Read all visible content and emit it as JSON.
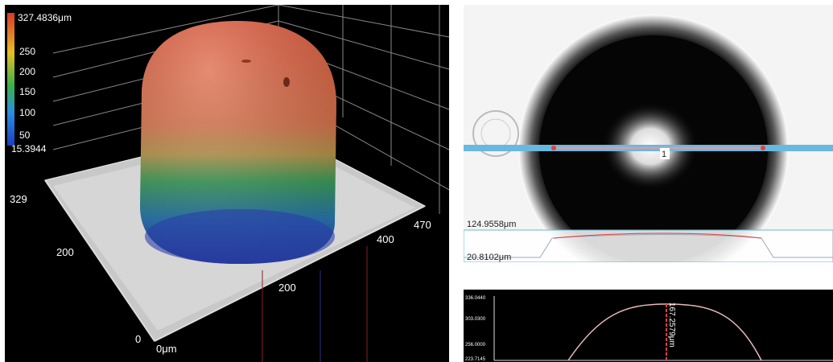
{
  "left_view": {
    "colorbar": {
      "max_label": "327.4836μm",
      "min_label": "15.3944",
      "ticks": [
        "250",
        "200",
        "150",
        "100",
        "50"
      ],
      "colors": [
        "#d63a2a",
        "#e8c020",
        "#3ab04a",
        "#2a90e0",
        "#1a40c0"
      ]
    },
    "axis": {
      "y_max": "329",
      "y_mid": "200",
      "x_right": "470",
      "x_mid": "400",
      "x_low": "200",
      "zero": "0",
      "origin": "0μm"
    }
  },
  "right_view": {
    "marker_label": "1",
    "measure_top": "124.9558μm",
    "measure_bottom": "20.8102μm"
  },
  "profile": {
    "y_ticks": [
      "336.0440",
      "303.0300",
      "256.0000",
      "223.7145"
    ],
    "peak_label": "167.2579μm",
    "line_color": "#e04040"
  }
}
